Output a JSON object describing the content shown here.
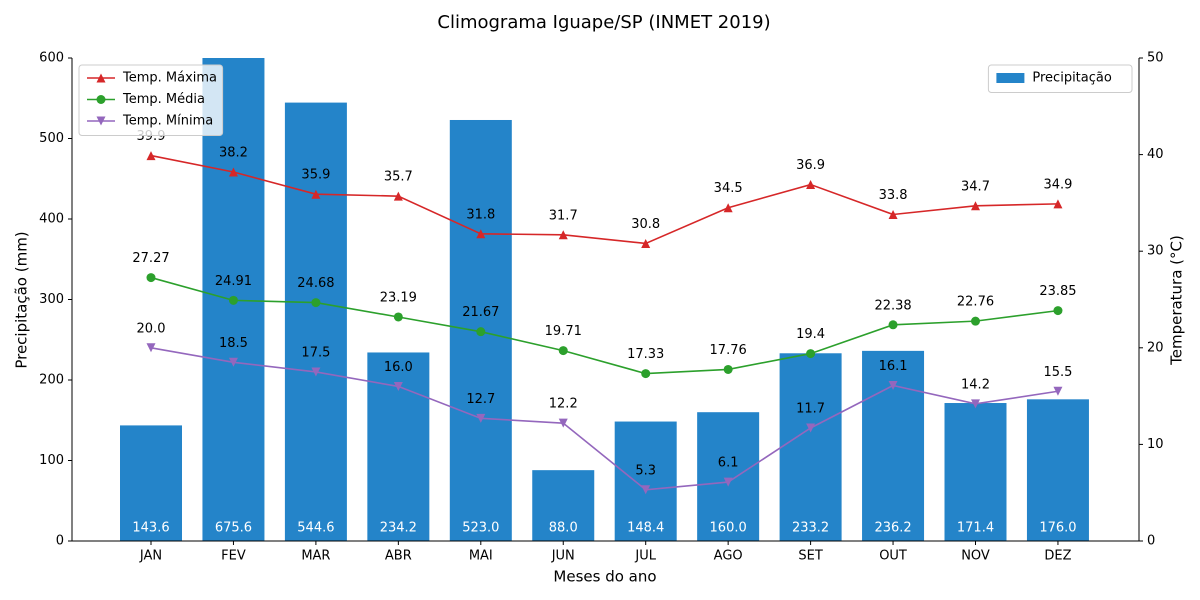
{
  "chart_data": {
    "type": "combo",
    "title": "Climograma Iguape/SP (INMET 2019)",
    "xlabel": "Meses do ano",
    "ylabel": "Precipitação (mm)",
    "y2label": "Temperatura (°C)",
    "categories": [
      "JAN",
      "FEV",
      "MAR",
      "ABR",
      "MAI",
      "JUN",
      "JUL",
      "AGO",
      "SET",
      "OUT",
      "NOV",
      "DEZ"
    ],
    "ylim": [
      0,
      600
    ],
    "yticks": [
      0,
      100,
      200,
      300,
      400,
      500,
      600
    ],
    "y2lim": [
      0,
      50
    ],
    "y2ticks": [
      0,
      10,
      20,
      30,
      40,
      50
    ],
    "legend_y": "upper right",
    "legend_y2": "upper left",
    "series": [
      {
        "name": "Precipitação",
        "type": "bar",
        "color": "#2484c9",
        "values": [
          143.6,
          675.6,
          544.6,
          234.2,
          523.0,
          88.0,
          148.4,
          160.0,
          233.2,
          236.2,
          171.4,
          176.0
        ],
        "value_labels": [
          "143.6",
          "675.6",
          "544.6",
          "234.2",
          "523.0",
          "88.0",
          "148.4",
          "160.0",
          "233.2",
          "236.2",
          "171.4",
          "176.0"
        ]
      },
      {
        "name": "Temp. Máxima",
        "type": "line",
        "axis": "y2",
        "color": "#d62728",
        "marker": "^",
        "values": [
          39.9,
          38.2,
          35.9,
          35.7,
          31.8,
          31.7,
          30.8,
          34.5,
          36.9,
          33.8,
          34.7,
          34.9
        ],
        "value_labels": [
          "39.9",
          "38.2",
          "35.9",
          "35.7",
          "31.8",
          "31.7",
          "30.8",
          "34.5",
          "36.9",
          "33.8",
          "34.7",
          "34.9"
        ]
      },
      {
        "name": "Temp. Média",
        "type": "line",
        "axis": "y2",
        "color": "#2ca02c",
        "marker": "o",
        "values": [
          27.27,
          24.91,
          24.68,
          23.19,
          21.67,
          19.71,
          17.33,
          17.76,
          19.4,
          22.38,
          22.76,
          23.85
        ],
        "value_labels": [
          "27.27",
          "24.91",
          "24.68",
          "23.19",
          "21.67",
          "19.71",
          "17.33",
          "17.76",
          "19.4",
          "22.38",
          "22.76",
          "23.85"
        ]
      },
      {
        "name": "Temp. Mínima",
        "type": "line",
        "axis": "y2",
        "color": "#9467bd",
        "marker": "v",
        "values": [
          20.0,
          18.5,
          17.5,
          16.0,
          12.7,
          12.2,
          5.3,
          6.1,
          11.7,
          16.1,
          14.2,
          15.5
        ],
        "value_labels": [
          "20.0",
          "18.5",
          "17.5",
          "16.0",
          "12.7",
          "12.2",
          "5.3",
          "6.1",
          "11.7",
          "16.1",
          "14.2",
          "15.5"
        ]
      }
    ]
  }
}
